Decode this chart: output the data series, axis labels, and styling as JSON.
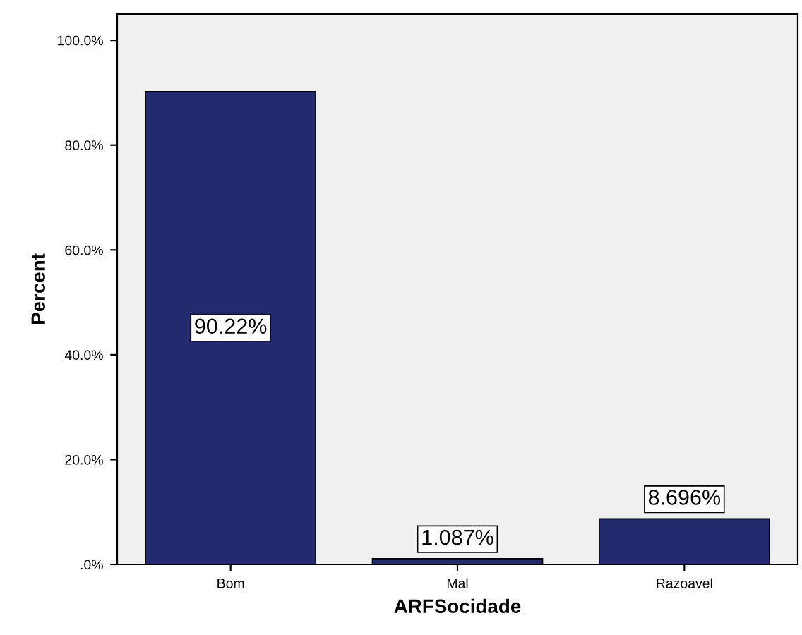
{
  "chart_data": {
    "type": "bar",
    "xlabel": "ARFSocidade",
    "ylabel": "Percent",
    "categories": [
      "Bom",
      "Mal",
      "Razoavel"
    ],
    "values": [
      90.22,
      1.087,
      8.696
    ],
    "value_labels": [
      "90.22%",
      "1.087%",
      "8.696%"
    ],
    "color": "#232a6e",
    "ylim": [
      0,
      105
    ],
    "yticks": [
      {
        "value": 0,
        "label": ".0%"
      },
      {
        "value": 20,
        "label": "20.0%"
      },
      {
        "value": 40,
        "label": "40.0%"
      },
      {
        "value": 60,
        "label": "60.0%"
      },
      {
        "value": 80,
        "label": "80.0%"
      },
      {
        "value": 100,
        "label": "100.0%"
      }
    ],
    "grid": false,
    "legend": false
  }
}
